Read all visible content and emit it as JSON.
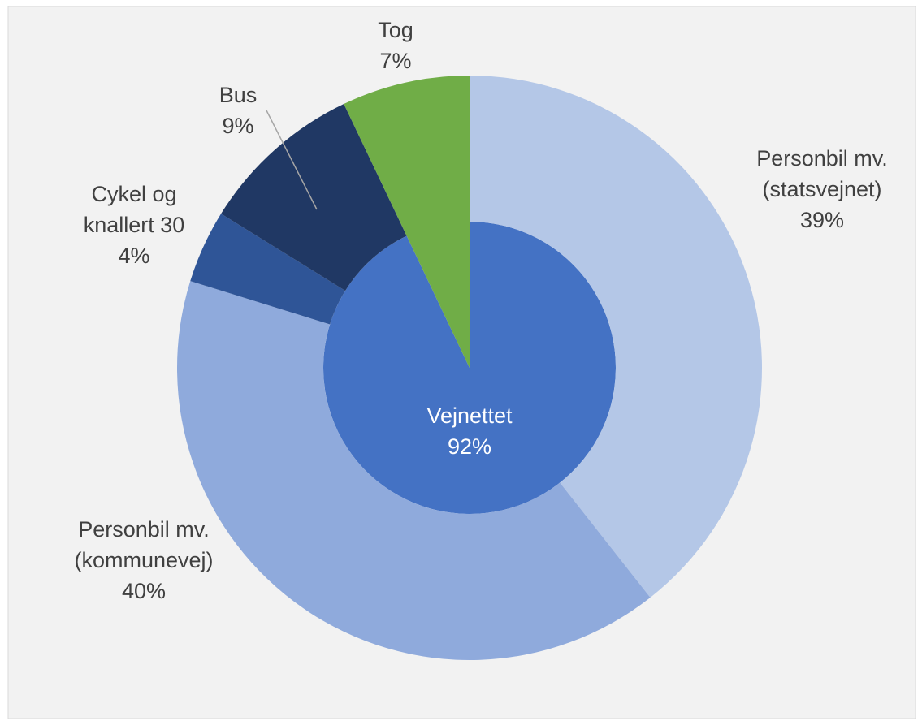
{
  "chart_data": {
    "type": "sunburst",
    "nodes": [
      {
        "name": "Vejnettet",
        "value": 92,
        "value_label": "92%",
        "color": "#4472c4",
        "children": [
          {
            "name": "Personbil mv. (statsvejnet)",
            "value": 39,
            "value_label": "39%",
            "color": "#b4c7e7"
          },
          {
            "name": "Personbil mv. (kommunevej)",
            "value": 40,
            "value_label": "40%",
            "color": "#8faadc"
          },
          {
            "name": "Cykel og knallert 30",
            "value": 4,
            "value_label": "4%",
            "color": "#2f5597"
          },
          {
            "name": "Bus",
            "value": 9,
            "value_label": "9%",
            "color": "#203864"
          }
        ]
      },
      {
        "name": "Tog",
        "value": 7,
        "value_label": "7%",
        "color": "#70ad47"
      }
    ]
  }
}
